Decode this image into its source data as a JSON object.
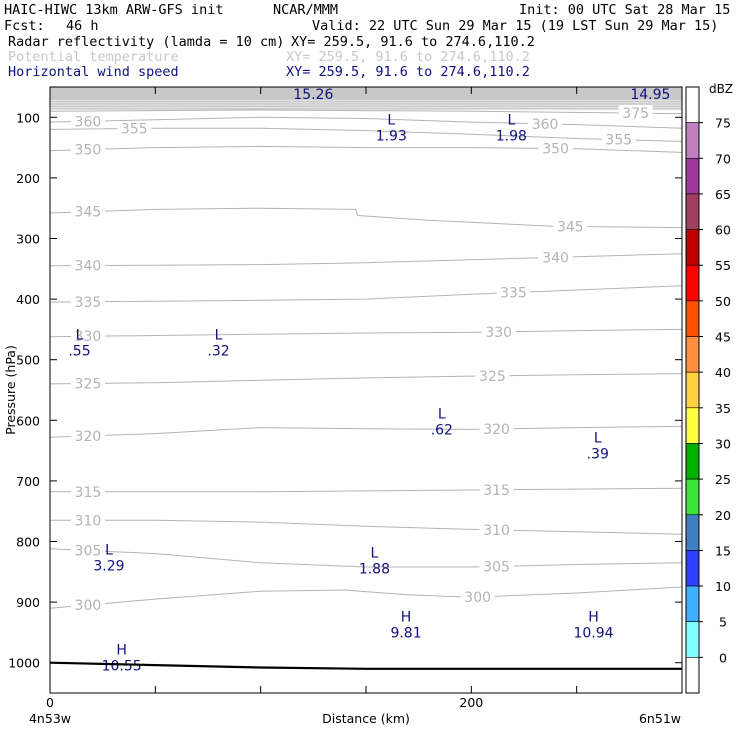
{
  "header": {
    "model": "HAIC-HIWC 13km ARW-GFS init",
    "org": "NCAR/MMM",
    "init": "Init: 00 UTC Sat 28 Mar 15",
    "fcst_label": "Fcst:",
    "fcst_value": "46 h",
    "valid": "Valid: 22 UTC Sun 29 Mar 15 (19 LST Sun 29 Mar 15)",
    "fields": [
      {
        "name": "Radar reflectivity (lamda = 10 cm)",
        "xy": "XY= 259.5, 91.6 to 274.6,110.2",
        "color": "#000000"
      },
      {
        "name": "Potential temperature",
        "xy": "XY= 259.5, 91.6 to 274.6,110.2",
        "color": "#c8c8c8"
      },
      {
        "name": "Horizontal wind speed",
        "xy": "XY= 259.5, 91.6 to 274.6,110.2",
        "color": "#101080"
      }
    ]
  },
  "chart_data": {
    "type": "contour",
    "ylabel": "Pressure (hPa)",
    "xlabel": "Distance (km)",
    "x_start_label": "4n53w",
    "x_end_label": "6n51w",
    "xlim": [
      0,
      300
    ],
    "x_ticks": [
      0,
      50,
      100,
      150,
      200,
      250,
      300
    ],
    "x_tick_labels": [
      {
        "value": 0,
        "label": "0"
      },
      {
        "value": 200,
        "label": "200"
      }
    ],
    "ylim": [
      1050,
      50
    ],
    "y_ticks": [
      {
        "value": 100,
        "label": "100"
      },
      {
        "value": 200,
        "label": "200"
      },
      {
        "value": 300,
        "label": "300"
      },
      {
        "value": 400,
        "label": "400"
      },
      {
        "value": 500,
        "label": "500"
      },
      {
        "value": 600,
        "label": "600"
      },
      {
        "value": 700,
        "label": "700"
      },
      {
        "value": 800,
        "label": "800"
      },
      {
        "value": 900,
        "label": "900"
      },
      {
        "value": 1000,
        "label": "1000"
      }
    ],
    "theta_contours": [
      {
        "label": "300",
        "points": [
          [
            0,
            910
          ],
          [
            50,
            895
          ],
          [
            100,
            882
          ],
          [
            140,
            880
          ],
          [
            170,
            888
          ],
          [
            200,
            892
          ],
          [
            250,
            885
          ],
          [
            300,
            875
          ]
        ],
        "labels_at": [
          18,
          203
        ]
      },
      {
        "label": "305",
        "points": [
          [
            0,
            812
          ],
          [
            50,
            820
          ],
          [
            100,
            835
          ],
          [
            150,
            842
          ],
          [
            200,
            842
          ],
          [
            250,
            838
          ],
          [
            300,
            835
          ]
        ],
        "labels_at": [
          18,
          212
        ]
      },
      {
        "label": "310",
        "points": [
          [
            0,
            765
          ],
          [
            50,
            765
          ],
          [
            100,
            768
          ],
          [
            150,
            775
          ],
          [
            200,
            780
          ],
          [
            250,
            784
          ],
          [
            300,
            788
          ]
        ],
        "labels_at": [
          18,
          212
        ]
      },
      {
        "label": "315",
        "points": [
          [
            0,
            718
          ],
          [
            100,
            718
          ],
          [
            200,
            715
          ],
          [
            300,
            712
          ]
        ],
        "labels_at": [
          18,
          212
        ]
      },
      {
        "label": "320",
        "points": [
          [
            0,
            628
          ],
          [
            50,
            622
          ],
          [
            100,
            612
          ],
          [
            150,
            614
          ],
          [
            200,
            615
          ],
          [
            250,
            612
          ],
          [
            300,
            610
          ]
        ],
        "labels_at": [
          18,
          212
        ]
      },
      {
        "label": "325",
        "points": [
          [
            0,
            540
          ],
          [
            50,
            538
          ],
          [
            100,
            534
          ],
          [
            150,
            530
          ],
          [
            200,
            527
          ],
          [
            250,
            525
          ],
          [
            300,
            523
          ]
        ],
        "labels_at": [
          18,
          210
        ]
      },
      {
        "label": "330",
        "points": [
          [
            0,
            462
          ],
          [
            50,
            460
          ],
          [
            100,
            458
          ],
          [
            150,
            456
          ],
          [
            200,
            455
          ],
          [
            250,
            452
          ],
          [
            300,
            450
          ]
        ],
        "labels_at": [
          18,
          213
        ]
      },
      {
        "label": "335",
        "points": [
          [
            0,
            405
          ],
          [
            100,
            402
          ],
          [
            150,
            400
          ],
          [
            200,
            392
          ],
          [
            250,
            385
          ],
          [
            300,
            378
          ]
        ],
        "labels_at": [
          18,
          220
        ]
      },
      {
        "label": "340",
        "points": [
          [
            0,
            345
          ],
          [
            100,
            343
          ],
          [
            150,
            340
          ],
          [
            200,
            335
          ],
          [
            250,
            330
          ],
          [
            300,
            325
          ]
        ],
        "labels_at": [
          18,
          240
        ]
      },
      {
        "label": "345",
        "points": [
          [
            0,
            258
          ],
          [
            50,
            252
          ],
          [
            100,
            250
          ],
          [
            145,
            252
          ],
          [
            146,
            262
          ],
          [
            180,
            270
          ],
          [
            240,
            280
          ],
          [
            300,
            282
          ]
        ],
        "labels_at": [
          18,
          247
        ]
      },
      {
        "label": "350",
        "points": [
          [
            0,
            155
          ],
          [
            50,
            150
          ],
          [
            100,
            148
          ],
          [
            150,
            150
          ],
          [
            200,
            150
          ],
          [
            250,
            152
          ],
          [
            300,
            158
          ]
        ],
        "labels_at": [
          18,
          240
        ]
      },
      {
        "label": "355",
        "points": [
          [
            0,
            120
          ],
          [
            50,
            118
          ],
          [
            100,
            118
          ],
          [
            150,
            122
          ],
          [
            200,
            128
          ],
          [
            250,
            135
          ],
          [
            300,
            140
          ]
        ],
        "labels_at": [
          40,
          270
        ]
      },
      {
        "label": "360",
        "points": [
          [
            0,
            108
          ],
          [
            50,
            104
          ],
          [
            100,
            100
          ],
          [
            150,
            102
          ],
          [
            200,
            108
          ],
          [
            250,
            112
          ],
          [
            300,
            118
          ]
        ],
        "labels_at": [
          18,
          235
        ]
      },
      {
        "label": "375",
        "points": [
          [
            0,
            90
          ],
          [
            100,
            88
          ],
          [
            200,
            90
          ],
          [
            300,
            94
          ]
        ],
        "labels_at": [
          278
        ]
      }
    ],
    "extra_theta_lines": [
      72,
      76,
      80,
      84
    ],
    "wind_extrema": [
      {
        "kind": "L",
        "value": "1.93",
        "x": 162,
        "p": 115
      },
      {
        "kind": "L",
        "value": "1.98",
        "x": 219,
        "p": 115
      },
      {
        "kind": "L",
        "value": ".55",
        "x": 14,
        "p": 470
      },
      {
        "kind": "L",
        "value": ".32",
        "x": 80,
        "p": 470
      },
      {
        "kind": "L",
        "value": ".62",
        "x": 186,
        "p": 600
      },
      {
        "kind": "L",
        "value": ".39",
        "x": 260,
        "p": 640
      },
      {
        "kind": "L",
        "value": "3.29",
        "x": 28,
        "p": 825
      },
      {
        "kind": "L",
        "value": "1.88",
        "x": 154,
        "p": 830
      },
      {
        "kind": "H",
        "value": "9.81",
        "x": 169,
        "p": 935
      },
      {
        "kind": "H",
        "value": "10.94",
        "x": 258,
        "p": 935
      },
      {
        "kind": "H",
        "value": "10.55",
        "x": 34,
        "p": 990
      }
    ],
    "top_values": [
      {
        "value": "15.26",
        "x": 125
      },
      {
        "value": "14.95",
        "x": 285
      }
    ],
    "terrain": [
      [
        0,
        1000
      ],
      [
        50,
        1004
      ],
      [
        100,
        1008
      ],
      [
        150,
        1010
      ],
      [
        200,
        1010
      ],
      [
        250,
        1010
      ],
      [
        300,
        1010
      ]
    ],
    "colorbar": {
      "unit": "dBZ",
      "levels": [
        "75",
        "70",
        "65",
        "60",
        "55",
        "50",
        "45",
        "40",
        "35",
        "30",
        "25",
        "20",
        "15",
        "10",
        "5",
        "0"
      ],
      "colors": [
        "#ffffff",
        "#c080c0",
        "#9a3a9a",
        "#a04060",
        "#c00000",
        "#ff0000",
        "#ff5000",
        "#ff9040",
        "#ffd040",
        "#ffff40",
        "#00b000",
        "#40e040",
        "#4080c0",
        "#3040ff",
        "#40b0ff",
        "#80ffff",
        "#ffffff"
      ]
    }
  }
}
